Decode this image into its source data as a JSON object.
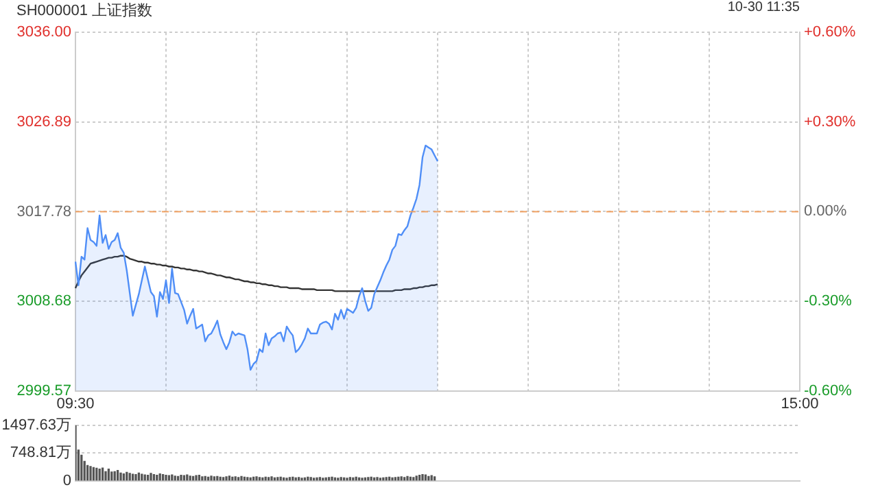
{
  "chart_data": [
    {
      "type": "area",
      "title": "SH000001 上证指数",
      "subtitle": "10-30 11:35",
      "categories": [
        "09:30",
        null,
        null,
        null,
        null,
        null,
        null,
        null,
        null,
        null,
        null,
        null,
        null,
        null,
        null,
        null,
        null,
        null,
        null,
        null,
        null,
        null,
        null,
        null,
        null,
        null,
        null,
        null,
        null,
        null,
        null,
        null,
        null,
        null,
        null,
        null,
        null,
        null,
        null,
        null,
        null,
        null,
        null,
        null,
        null,
        null,
        null,
        null,
        null,
        null,
        null,
        null,
        null,
        null,
        null,
        null,
        null,
        null,
        null,
        null,
        null,
        null,
        null,
        null,
        null,
        null,
        null,
        null,
        null,
        null,
        null,
        null,
        null,
        null,
        null,
        null,
        null,
        null,
        null,
        null,
        null,
        null,
        null,
        null,
        null,
        null,
        null,
        null,
        null,
        null,
        null,
        null,
        null,
        null,
        null,
        null,
        null,
        null,
        null,
        null,
        null,
        null,
        null,
        null,
        null,
        null,
        null,
        null,
        null,
        null,
        null,
        null,
        null,
        null,
        null,
        null,
        null,
        null,
        null,
        null,
        null,
        null,
        null,
        null,
        null,
        null,
        null,
        null,
        null,
        null,
        null,
        null,
        null,
        null,
        null,
        null,
        null,
        null,
        null,
        null,
        null,
        null,
        null,
        null,
        null,
        null,
        null,
        null,
        null,
        null,
        null,
        null,
        null,
        null,
        null,
        null,
        null,
        null,
        null,
        null,
        null,
        null,
        null,
        null,
        null,
        null,
        null,
        null,
        null,
        null,
        null,
        null,
        null,
        null,
        null,
        null,
        null,
        null,
        null,
        null,
        null,
        null,
        null,
        null,
        null,
        null,
        null,
        null,
        null,
        null,
        null,
        null,
        null,
        null,
        null,
        null,
        null,
        null,
        null,
        null,
        null,
        null,
        null,
        null,
        null,
        null,
        null,
        null,
        null,
        null,
        null,
        null,
        null,
        null,
        null,
        null,
        null,
        null,
        null,
        null,
        null,
        null,
        null,
        null,
        null,
        null,
        null,
        null,
        null,
        null,
        null,
        null,
        null,
        null,
        null,
        null,
        null,
        null,
        null,
        null,
        "15:00"
      ],
      "ylim": [
        2999.57,
        3036.0
      ],
      "yticks": [
        {
          "value": 2999.57,
          "label": "2999.57"
        },
        {
          "value": 3008.68,
          "label": "3008.68"
        },
        {
          "value": 3017.78,
          "label": "3017.78"
        },
        {
          "value": 3026.89,
          "label": "3026.89"
        },
        {
          "value": 3036.0,
          "label": "3036.00"
        }
      ],
      "y2lim": [
        -0.6,
        0.6
      ],
      "y2ticks": [
        {
          "value": -0.6,
          "label": "-0.60%"
        },
        {
          "value": -0.3,
          "label": "-0.30%"
        },
        {
          "value": 0,
          "label": "0.00%"
        },
        {
          "value": 0.3,
          "label": "+0.30%"
        },
        {
          "value": 0.6,
          "label": "+0.60%"
        }
      ],
      "grid": true,
      "ref_lines": [
        {
          "axis": "y",
          "value": 3017.78,
          "color": "#f0a060",
          "line_style": "dashed"
        }
      ],
      "series": [
        {
          "color": "#4f8ef7",
          "values": [
            3012.7,
            3010.3,
            3013.2,
            3012.9,
            3016.1,
            3014.9,
            3014.7,
            3014.3,
            3017.4,
            3014.6,
            3015.4,
            3014.0,
            3014.7,
            3014.9,
            3015.6,
            3014.1,
            3013.6,
            3011.8,
            3009.5,
            3007.2,
            3008.3,
            3009.4,
            3010.8,
            3012.2,
            3010.9,
            3009.6,
            3009.2,
            3007.1,
            3009.6,
            3008.9,
            3010.8,
            3008.5,
            3012.0,
            3009.5,
            3009.4,
            3008.6,
            3007.8,
            3006.4,
            3007.2,
            3007.9,
            3005.9,
            3006.1,
            3006.3,
            3004.6,
            3005.2,
            3005.4,
            3006.0,
            3006.7,
            3005.3,
            3004.5,
            3003.8,
            3004.5,
            3005.6,
            3005.2,
            3005.4,
            3005.3,
            3005.2,
            3003.8,
            3001.7,
            3002.3,
            3002.6,
            3003.8,
            3003.5,
            3005.4,
            3004.2,
            3004.9,
            3005.1,
            3005.4,
            3005.5,
            3004.6,
            3006.1,
            3005.6,
            3005.2,
            3003.5,
            3003.8,
            3004.3,
            3004.9,
            3005.9,
            3005.4,
            3005.4,
            3005.4,
            3006.3,
            3006.5,
            3006.6,
            3006.4,
            3005.8,
            3007.4,
            3006.8,
            3007.8,
            3006.9,
            3007.9,
            3007.7,
            3007.5,
            3008.0,
            3009.2,
            3010.0,
            3008.7,
            3007.7,
            3008.0,
            3009.4,
            3010.1,
            3010.8,
            3011.6,
            3012.3,
            3012.9,
            3013.9,
            3014.3,
            3015.5,
            3015.4,
            3015.9,
            3016.3,
            3017.4,
            3018.2,
            3019.1,
            3020.5,
            3023.3,
            3024.5,
            3024.3,
            3024.1,
            3023.5,
            3022.9,
            null,
            null,
            null,
            null,
            null,
            null,
            null,
            null,
            null,
            null,
            null,
            null,
            null,
            null,
            null,
            null,
            null,
            null,
            null,
            null,
            null,
            null,
            null,
            null,
            null,
            null,
            null,
            null,
            null,
            null,
            null,
            null,
            null,
            null,
            null,
            null,
            null,
            null,
            null,
            null,
            null,
            null,
            null,
            null,
            null,
            null,
            null,
            null,
            null,
            null,
            null,
            null,
            null,
            null,
            null,
            null,
            null,
            null,
            null,
            null,
            null,
            null,
            null,
            null,
            null,
            null,
            null,
            null,
            null,
            null,
            null,
            null,
            null,
            null,
            null,
            null,
            null,
            null,
            null,
            null,
            null,
            null,
            null,
            null,
            null,
            null,
            null,
            null,
            null,
            null,
            null,
            null,
            null,
            null,
            null,
            null,
            null,
            null,
            null,
            null,
            null,
            null,
            null,
            null,
            null,
            null,
            null,
            null,
            null,
            null,
            null,
            null,
            null,
            null,
            null,
            null,
            null,
            null,
            null,
            null
          ]
        },
        {
          "type": "line",
          "color": "#333333",
          "values": [
            3010.0,
            3010.7,
            3011.3,
            3011.7,
            3012.1,
            3012.5,
            3012.6,
            3012.7,
            3012.8,
            3012.9,
            3013.0,
            3013.1,
            3013.1,
            3013.2,
            3013.2,
            3013.3,
            3013.3,
            3013.2,
            3013.0,
            3012.9,
            3012.8,
            3012.7,
            3012.7,
            3012.6,
            3012.6,
            3012.5,
            3012.5,
            3012.4,
            3012.4,
            3012.3,
            3012.3,
            3012.2,
            3012.2,
            3012.1,
            3012.1,
            3012.0,
            3012.0,
            3011.9,
            3011.9,
            3011.8,
            3011.8,
            3011.7,
            3011.7,
            3011.6,
            3011.5,
            3011.5,
            3011.4,
            3011.3,
            3011.3,
            3011.2,
            3011.1,
            3011.1,
            3011.0,
            3010.9,
            3010.9,
            3010.8,
            3010.7,
            3010.7,
            3010.6,
            3010.6,
            3010.5,
            3010.5,
            3010.4,
            3010.4,
            3010.3,
            3010.3,
            3010.2,
            3010.2,
            3010.1,
            3010.1,
            3010.1,
            3010.0,
            3010.0,
            3010.0,
            3010.0,
            3009.9,
            3009.9,
            3009.9,
            3009.9,
            3009.9,
            3009.8,
            3009.8,
            3009.8,
            3009.8,
            3009.8,
            3009.8,
            3009.7,
            3009.7,
            3009.7,
            3009.7,
            3009.7,
            3009.7,
            3009.7,
            3009.7,
            3009.7,
            3009.7,
            3009.7,
            3009.7,
            3009.7,
            3009.7,
            3009.7,
            3009.7,
            3009.7,
            3009.7,
            3009.7,
            3009.7,
            3009.8,
            3009.8,
            3009.8,
            3009.9,
            3009.9,
            3009.9,
            3010.0,
            3010.0,
            3010.1,
            3010.1,
            3010.2,
            3010.2,
            3010.3,
            3010.3,
            3010.4,
            null,
            null,
            null,
            null,
            null,
            null,
            null,
            null,
            null,
            null,
            null,
            null,
            null,
            null,
            null,
            null,
            null,
            null,
            null,
            null,
            null,
            null,
            null,
            null,
            null,
            null,
            null,
            null,
            null,
            null,
            null,
            null,
            null,
            null,
            null,
            null,
            null,
            null,
            null,
            null,
            null,
            null,
            null,
            null,
            null,
            null,
            null,
            null,
            null,
            null,
            null,
            null,
            null,
            null,
            null,
            null,
            null,
            null,
            null,
            null,
            null,
            null,
            null,
            null,
            null,
            null,
            null,
            null,
            null,
            null,
            null,
            null,
            null,
            null,
            null,
            null,
            null,
            null,
            null,
            null,
            null,
            null,
            null,
            null,
            null,
            null,
            null,
            null,
            null,
            null,
            null,
            null,
            null,
            null,
            null,
            null,
            null,
            null,
            null,
            null,
            null,
            null,
            null,
            null,
            null,
            null,
            null,
            null,
            null,
            null,
            null,
            null,
            null,
            null,
            null,
            null,
            null,
            null,
            null,
            null
          ]
        }
      ]
    },
    {
      "type": "bar",
      "color": "#555555",
      "tick_labels": "y",
      "grid": "y",
      "categories": [
        null,
        null,
        null,
        null,
        null,
        null,
        null,
        null,
        null,
        null,
        null,
        null,
        null,
        null,
        null,
        null,
        null,
        null,
        null,
        null,
        null,
        null,
        null,
        null,
        null,
        null,
        null,
        null,
        null,
        null,
        null,
        null,
        null,
        null,
        null,
        null,
        null,
        null,
        null,
        null,
        null,
        null,
        null,
        null,
        null,
        null,
        null,
        null,
        null,
        null,
        null,
        null,
        null,
        null,
        null,
        null,
        null,
        null,
        null,
        null,
        null,
        null,
        null,
        null,
        null,
        null,
        null,
        null,
        null,
        null,
        null,
        null,
        null,
        null,
        null,
        null,
        null,
        null,
        null,
        null,
        null,
        null,
        null,
        null,
        null,
        null,
        null,
        null,
        null,
        null,
        null,
        null,
        null,
        null,
        null,
        null,
        null,
        null,
        null,
        null,
        null,
        null,
        null,
        null,
        null,
        null,
        null,
        null,
        null,
        null,
        null,
        null,
        null,
        null,
        null,
        null,
        null,
        null,
        null,
        null,
        null,
        null,
        null,
        null,
        null,
        null,
        null,
        null,
        null,
        null,
        null,
        null,
        null,
        null,
        null,
        null,
        null,
        null,
        null,
        null,
        null,
        null,
        null,
        null,
        null,
        null,
        null,
        null,
        null,
        null,
        null,
        null,
        null,
        null,
        null,
        null,
        null,
        null,
        null,
        null,
        null,
        null,
        null,
        null,
        null,
        null,
        null,
        null,
        null,
        null,
        null,
        null,
        null,
        null,
        null,
        null,
        null,
        null,
        null,
        null,
        null,
        null,
        null,
        null,
        null,
        null,
        null,
        null,
        null,
        null,
        null,
        null,
        null,
        null,
        null,
        null,
        null,
        null,
        null,
        null,
        null,
        null,
        null,
        null,
        null,
        null,
        null,
        null,
        null,
        null,
        null,
        null,
        null,
        null,
        null,
        null,
        null,
        null,
        null,
        null,
        null,
        null,
        null,
        null,
        null,
        null,
        null,
        null,
        null,
        null,
        null,
        null,
        null,
        null,
        null,
        null,
        null,
        null,
        null,
        null,
        null
      ],
      "ylim": [
        0,
        1497.63
      ],
      "yticks": [
        {
          "value": 0,
          "label": "0"
        },
        {
          "value": 748.81,
          "label": "748.81万"
        },
        {
          "value": 1497.63,
          "label": "1497.63万"
        }
      ],
      "values": [
        1497.63,
        832,
        694,
        527,
        416,
        388,
        360,
        340,
        319,
        347,
        250,
        320,
        240,
        250,
        280,
        210,
        190,
        230,
        200,
        180,
        170,
        210,
        180,
        160,
        150,
        200,
        170,
        150,
        190,
        170,
        150,
        140,
        160,
        130,
        120,
        150,
        140,
        160,
        130,
        120,
        140,
        150,
        110,
        120,
        100,
        130,
        110,
        120,
        100,
        90,
        110,
        130,
        100,
        110,
        90,
        120,
        100,
        90,
        80,
        100,
        110,
        90,
        80,
        100,
        90,
        110,
        80,
        90,
        100,
        80,
        70,
        90,
        100,
        80,
        90,
        70,
        80,
        100,
        90,
        70,
        80,
        90,
        70,
        80,
        90,
        100,
        80,
        70,
        90,
        80,
        70,
        90,
        80,
        100,
        80,
        70,
        80,
        90,
        100,
        80,
        90,
        70,
        80,
        90,
        100,
        80,
        90,
        100,
        110,
        90,
        120,
        100,
        90,
        130,
        150,
        170,
        160,
        120,
        140,
        110,
        null,
        null,
        null,
        null,
        null,
        null,
        null,
        null,
        null,
        null,
        null,
        null,
        null,
        null,
        null,
        null,
        null,
        null,
        null,
        null,
        null,
        null,
        null,
        null,
        null,
        null,
        null,
        null,
        null,
        null,
        null,
        null,
        null,
        null,
        null,
        null,
        null,
        null,
        null,
        null,
        null,
        null,
        null,
        null,
        null,
        null,
        null,
        null,
        null,
        null,
        null,
        null,
        null,
        null,
        null,
        null,
        null,
        null,
        null,
        null,
        null,
        null,
        null,
        null,
        null,
        null,
        null,
        null,
        null,
        null,
        null,
        null,
        null,
        null,
        null,
        null,
        null,
        null,
        null,
        null,
        null,
        null,
        null,
        null,
        null,
        null,
        null,
        null,
        null,
        null,
        null,
        null,
        null,
        null,
        null,
        null,
        null,
        null,
        null,
        null,
        null,
        null,
        null,
        null,
        null,
        null,
        null,
        null,
        null,
        null,
        null,
        null,
        null,
        null,
        null,
        null,
        null,
        null,
        null,
        null,
        null
      ]
    }
  ]
}
